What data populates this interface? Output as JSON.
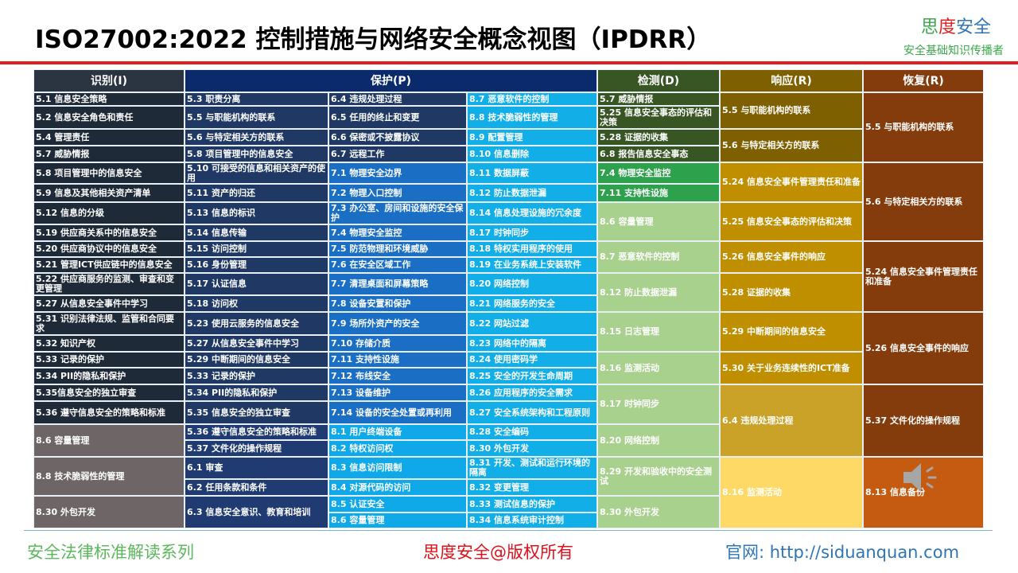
{
  "header": {
    "title": "ISO27002:2022 控制措施与网络安全概念视图（IPDRR）",
    "brand": [
      "思",
      "度",
      "安全"
    ],
    "brand_subtitle": "安全基础知识传播者"
  },
  "table": {
    "headers": [
      "识别(I)",
      "保护(P)",
      "检测(D)",
      "响应(R)",
      "恢复(R)"
    ],
    "columns": [
      [
        "5.1 信息安全策略",
        "5.2 信息安全角色和责任",
        "5.4 管理责任",
        "5.7 威胁情报",
        "5.8 项目管理中的信息安全",
        "5.9 信息及其他相关资产清单",
        "5.12 信息的分级",
        "5.19 供应商关系中的信息安全",
        "5.20 供应商协议中的信息安全",
        "5.21 管理ICT供应链中的信息安全",
        "5.22 供应商服务的监测、审查和变更管理",
        "5.27 从信息安全事件中学习",
        "5.31 识别法律法规、监管和合同要求",
        "5.32 知识产权",
        "5.33 记录的保护",
        "5.34 PII的隐私和保护",
        "5.35信息安全的独立审查",
        "5.36 遵守信息安全的策略和标准",
        "8.6 容量管理",
        "8.8 技术脆弱性的管理",
        "8.30 外包开发"
      ],
      [
        "5.3 职责分离",
        "5.5 与职能机构的联系",
        "5.6 与特定相关方的联系",
        "5.8 项目管理中的信息安全",
        "5.10 可接受的信息和相关资产的使用",
        "5.11 资产的归还",
        "5.13 信息的标识",
        "5.14 信息传输",
        "5.15 访问控制",
        "5.16 身份管理",
        "5.17 认证信息",
        "5.18 访问权",
        "5.23 使用云服务的信息安全",
        "5.27 从信息安全事件中学习",
        "5.29 中断期间的信息安全",
        "5.33 记录的保护",
        "5.34 PII的隐私和保护",
        "5.35 信息安全的独立审查",
        "5.36 遵守信息安全的策略和标准",
        "5.37 文件化的操作规程",
        "6.1 审查",
        "6.2 任用条款和条件",
        "6.3 信息安全意识、教育和培训"
      ],
      [
        "6.4 违规处理过程",
        "6.5 任用的终止和变更",
        "6.6 保密或不披露协议",
        "6.7 远程工作",
        "7.1 物理安全边界",
        "7.2 物理入口控制",
        "7.3 办公室、房间和设施的安全保护",
        "7.4 物理安全监控",
        "7.5 防范物理和环境威胁",
        "7.6 在安全区域工作",
        "7.7 清理桌面和屏幕策略",
        "7.8 设备安置和保护",
        "7.9 场所外资产的安全",
        "7.10 存储介质",
        "7.11 支持性设施",
        "7.12 布线安全",
        "7.13 设备维护",
        "7.14 设备的安全处置或再利用",
        "8.1 用户终端设备",
        "8.2 特权访问权",
        "8.3 信息访问限制",
        "8.4 对源代码的访问",
        "8.5 认证安全",
        "8.6 容量管理"
      ],
      [
        "8.7 恶意软件的控制",
        "8.8 技术脆弱性的管理",
        "8.9 配置管理",
        "8.10 信息删除",
        "8.11 数据屏蔽",
        "8.12 防止数据泄漏",
        "8.14 信息处理设施的冗余度",
        "8.17 时钟同步",
        "8.18 特权实用程序的使用",
        "8.19 在业务系统上安装软件",
        "8.20 网络控制",
        "8.21 网络服务的安全",
        "8.22 网站过滤",
        "8.23 网络中的隔离",
        "8.24 使用密码学",
        "8.25 安全的开发生命周期",
        "8.26 应用程序的安全需求",
        "8.27 安全系统架构和工程原则",
        "8.28 安全编码",
        "8.30 外包开发",
        "8.31 开发、测试和运行环境的隔离",
        "8.32 变更管理",
        "8.33 测试信息的保护",
        "8.34 信息系统审计控制"
      ],
      [
        "5.7 威胁情报",
        "5.25 信息安全事态的评估和决策",
        "5.28 证据的收集",
        "6.8 报告信息安全事态",
        "7.4 物理安全监控",
        "7.11 支持性设施",
        "8.6 容量管理",
        "8.7 恶意软件的控制",
        "8.12 防止数据泄漏",
        "8.15 日志管理",
        "8.16 监测活动",
        "8.17 时钟同步",
        "8.20 网络控制",
        "8.29 开发和验收中的安全测试",
        "8.30 外包开发"
      ],
      [
        "5.5 与职能机构的联系",
        "5.6 与特定相关方的联系",
        "5.24 信息安全事件管理责任和准备",
        "5.25 信息安全事态的评估和决策",
        "5.26 信息安全事件的响应",
        "5.28 证据的收集",
        "5.29 中断期间的信息安全",
        "5.30 关于业务连续性的ICT准备",
        "6.4 违规处理过程",
        "8.16 监测活动"
      ],
      [
        "5.5 与职能机构的联系",
        "5.6 与特定相关方的联系",
        "5.24 信息安全事件管理责任和准备",
        "5.26 信息安全事件的响应",
        "5.37 文件化的操作规程",
        "8.13 信息备份"
      ]
    ]
  },
  "footer": {
    "left": "安全法律标准解读系列",
    "center": "思度安全@版权所有",
    "right": "官网: http://siduanquan.com"
  }
}
